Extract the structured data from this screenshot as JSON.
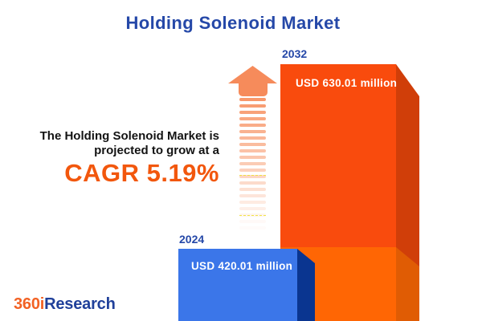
{
  "header": {
    "title": "Holding Solenoid Market"
  },
  "annotation": {
    "line1": "The Holding Solenoid Market is",
    "line2": "projected to grow at a",
    "cagr_label": "CAGR 5.19%"
  },
  "bars": [
    {
      "year": "2024",
      "value_label": "USD 420.01 million",
      "front_color": "#3B76E9",
      "side_color": "#0A3590",
      "year_label_color": "#2548A8"
    },
    {
      "year": "2032",
      "value_label": "USD 630.01 million",
      "front_color": "#F94B0D",
      "side_color": "#D03E09",
      "lower_front_color": "#FF6604",
      "lower_side_color": "#E05C04",
      "year_label_color": "#2548A8"
    }
  ],
  "arrow": {
    "color": "#F68B5B",
    "stripe_color": "#F78F5E"
  },
  "logo": {
    "part1": "360i",
    "part2": "Research",
    "part1_color": "#F26224",
    "part2_color": "#20409A"
  },
  "palette": {
    "title_blue": "#2548A8",
    "cagr_orange": "#F2570D",
    "text_dark": "#131313",
    "background": "#FFFFFF"
  },
  "chart_data": {
    "type": "bar",
    "title": "Holding Solenoid Market",
    "categories": [
      "2024",
      "2032"
    ],
    "values": [
      420.01,
      630.01
    ],
    "unit": "USD million",
    "value_labels": [
      "USD 420.01 million",
      "USD 630.01 million"
    ],
    "bar_colors": [
      "#3B76E9",
      "#F94B0D"
    ],
    "cagr_percent": 5.19,
    "annotations": [
      "The Holding Solenoid Market is projected to grow at a",
      "CAGR 5.19%"
    ],
    "axes": "none",
    "grid": false,
    "legend": "none"
  }
}
